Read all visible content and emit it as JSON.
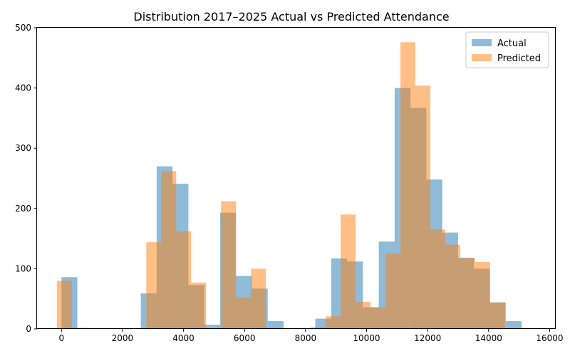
{
  "chart_data": {
    "type": "bar",
    "title": "Distribution 2017–2025 Actual vs Predicted Attendance",
    "xlabel": "",
    "ylabel": "",
    "xlim": [
      -800,
      16200
    ],
    "ylim": [
      0,
      500
    ],
    "x_ticks": [
      0,
      2000,
      4000,
      6000,
      8000,
      10000,
      12000,
      14000,
      16000
    ],
    "y_ticks": [
      0,
      100,
      200,
      300,
      400,
      500
    ],
    "grid": false,
    "legend": {
      "position": "upper right"
    },
    "series": [
      {
        "name": "Actual",
        "color": "#1f77b4",
        "alpha": 0.5,
        "bins": [
          {
            "x0": 0,
            "x1": 520,
            "count": 86
          },
          {
            "x0": 520,
            "x1": 1040,
            "count": 1
          },
          {
            "x0": 1040,
            "x1": 1560,
            "count": 1
          },
          {
            "x0": 2600,
            "x1": 3120,
            "count": 59
          },
          {
            "x0": 3120,
            "x1": 3640,
            "count": 270
          },
          {
            "x0": 3640,
            "x1": 4160,
            "count": 241
          },
          {
            "x0": 4160,
            "x1": 4680,
            "count": 73
          },
          {
            "x0": 4680,
            "x1": 5200,
            "count": 7
          },
          {
            "x0": 5200,
            "x1": 5720,
            "count": 193
          },
          {
            "x0": 5720,
            "x1": 6240,
            "count": 88
          },
          {
            "x0": 6240,
            "x1": 6760,
            "count": 67
          },
          {
            "x0": 6760,
            "x1": 7280,
            "count": 13
          },
          {
            "x0": 8320,
            "x1": 8840,
            "count": 17
          },
          {
            "x0": 8840,
            "x1": 9360,
            "count": 117
          },
          {
            "x0": 9360,
            "x1": 9880,
            "count": 112
          },
          {
            "x0": 9880,
            "x1": 10400,
            "count": 36
          },
          {
            "x0": 10400,
            "x1": 10920,
            "count": 145
          },
          {
            "x0": 10920,
            "x1": 11440,
            "count": 400
          },
          {
            "x0": 11440,
            "x1": 11960,
            "count": 367
          },
          {
            "x0": 11960,
            "x1": 12480,
            "count": 248
          },
          {
            "x0": 12480,
            "x1": 13000,
            "count": 160
          },
          {
            "x0": 13000,
            "x1": 13520,
            "count": 118
          },
          {
            "x0": 13520,
            "x1": 14040,
            "count": 100
          },
          {
            "x0": 14040,
            "x1": 14560,
            "count": 44
          },
          {
            "x0": 14560,
            "x1": 15080,
            "count": 13
          },
          {
            "x0": 15080,
            "x1": 15600,
            "count": 1
          }
        ]
      },
      {
        "name": "Predicted",
        "color": "#ff7f0e",
        "alpha": 0.5,
        "bins": [
          {
            "x0": -150,
            "x1": 340,
            "count": 80
          },
          {
            "x0": 340,
            "x1": 830,
            "count": 2
          },
          {
            "x0": 830,
            "x1": 1320,
            "count": 1
          },
          {
            "x0": 1320,
            "x1": 1810,
            "count": 1
          },
          {
            "x0": 2780,
            "x1": 3270,
            "count": 144
          },
          {
            "x0": 3270,
            "x1": 3760,
            "count": 262
          },
          {
            "x0": 3760,
            "x1": 4250,
            "count": 162
          },
          {
            "x0": 4250,
            "x1": 4740,
            "count": 77
          },
          {
            "x0": 5230,
            "x1": 5720,
            "count": 212
          },
          {
            "x0": 5720,
            "x1": 6210,
            "count": 52
          },
          {
            "x0": 6210,
            "x1": 6700,
            "count": 100
          },
          {
            "x0": 6700,
            "x1": 7190,
            "count": 2
          },
          {
            "x0": 8170,
            "x1": 8660,
            "count": 3
          },
          {
            "x0": 8660,
            "x1": 9150,
            "count": 21
          },
          {
            "x0": 9150,
            "x1": 9640,
            "count": 190
          },
          {
            "x0": 9640,
            "x1": 10130,
            "count": 45
          },
          {
            "x0": 10130,
            "x1": 10620,
            "count": 36
          },
          {
            "x0": 10620,
            "x1": 11110,
            "count": 125
          },
          {
            "x0": 11110,
            "x1": 11600,
            "count": 476
          },
          {
            "x0": 11600,
            "x1": 12090,
            "count": 404
          },
          {
            "x0": 12090,
            "x1": 12580,
            "count": 165
          },
          {
            "x0": 12580,
            "x1": 13070,
            "count": 140
          },
          {
            "x0": 13070,
            "x1": 13560,
            "count": 118
          },
          {
            "x0": 13560,
            "x1": 14050,
            "count": 111
          },
          {
            "x0": 14050,
            "x1": 14540,
            "count": 44
          }
        ]
      }
    ]
  }
}
